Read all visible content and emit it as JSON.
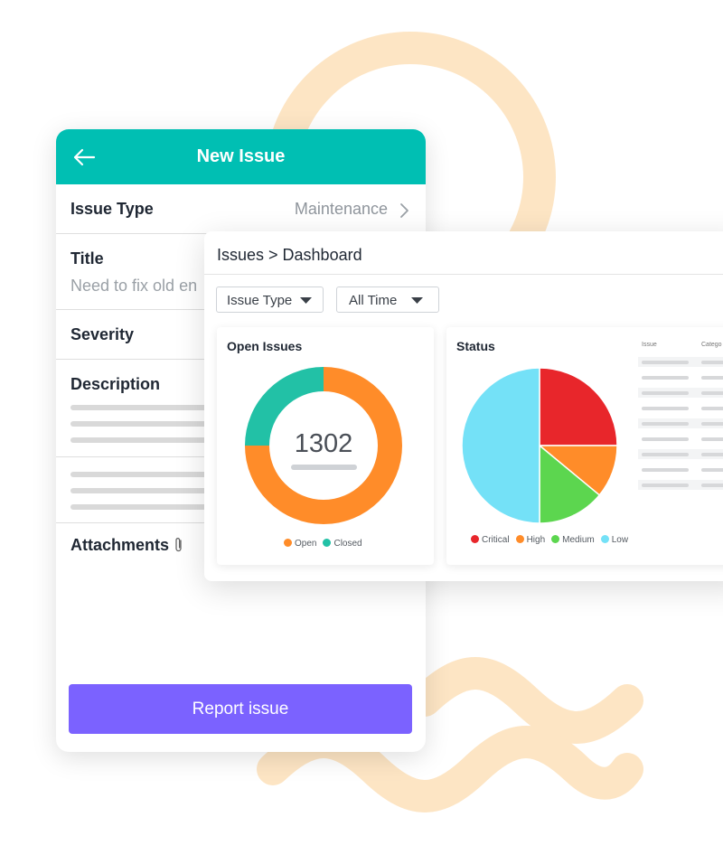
{
  "colors": {
    "teal": "#00bfb3",
    "purple": "#7b62ff",
    "peach": "#fde5c4",
    "orange": "#ff8c29",
    "green_teal": "#22c1a6",
    "critical": "#e8262b",
    "high": "#ff8c29",
    "medium": "#5cd64f",
    "low": "#74e1f7"
  },
  "form": {
    "header_title": "New Issue",
    "back_icon": "arrow-left-icon",
    "issue_type_label": "Issue Type",
    "issue_type_value": "Maintenance",
    "title_label": "Title",
    "title_value": "Need to fix old en",
    "severity_label": "Severity",
    "description_label": "Description",
    "attachments_label": "Attachments",
    "report_button": "Report issue"
  },
  "dashboard": {
    "breadcrumb": "Issues > Dashboard",
    "filters": [
      {
        "label": "Issue Type"
      },
      {
        "label": "All Time"
      }
    ],
    "table_headers": [
      "Issue",
      "Catego"
    ]
  },
  "chart_data": [
    {
      "type": "donut",
      "title": "Open Issues",
      "center_value": "1302",
      "series": [
        {
          "name": "Open",
          "value": 75,
          "color": "#ff8c29"
        },
        {
          "name": "Closed",
          "value": 25,
          "color": "#22c1a6"
        }
      ]
    },
    {
      "type": "pie",
      "title": "Status",
      "series": [
        {
          "name": "Critical",
          "value": 25,
          "color": "#e8262b"
        },
        {
          "name": "High",
          "value": 11,
          "color": "#ff8c29"
        },
        {
          "name": "Medium",
          "value": 14,
          "color": "#5cd64f"
        },
        {
          "name": "Low",
          "value": 50,
          "color": "#74e1f7"
        }
      ]
    }
  ]
}
